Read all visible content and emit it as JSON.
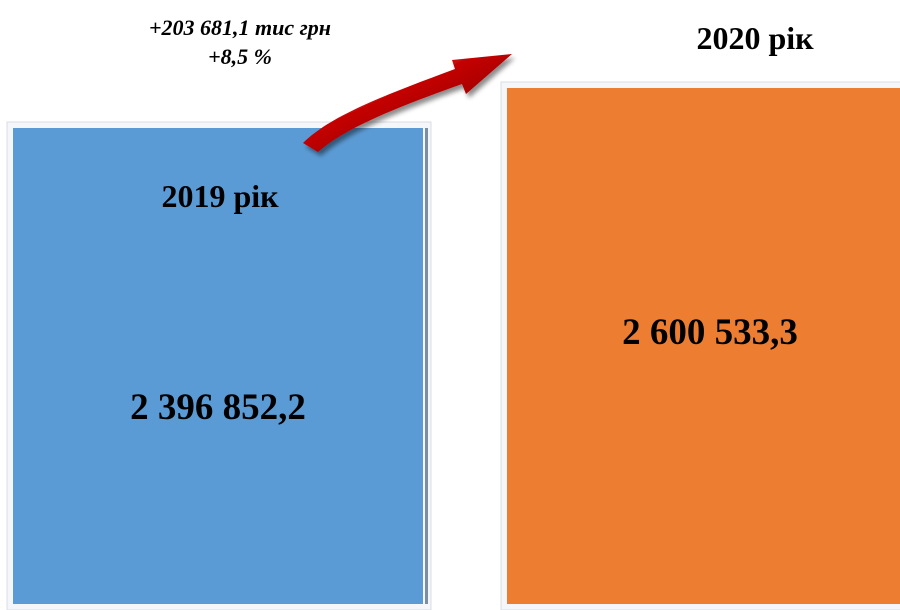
{
  "chart_data": {
    "type": "bar",
    "categories": [
      "2019 рік",
      "2020 рік"
    ],
    "values": [
      2396852.2,
      2600533.3
    ],
    "value_labels": [
      "2 396 852,2",
      "2 600 533,3"
    ],
    "colors": [
      "#5B9BD5",
      "#ED7D31"
    ],
    "change": {
      "absolute": "+203 681,1 тис грн",
      "percent": "+8,5 %"
    },
    "annotation_arrow_color": "#C00000",
    "legend": "none",
    "grid": false
  }
}
